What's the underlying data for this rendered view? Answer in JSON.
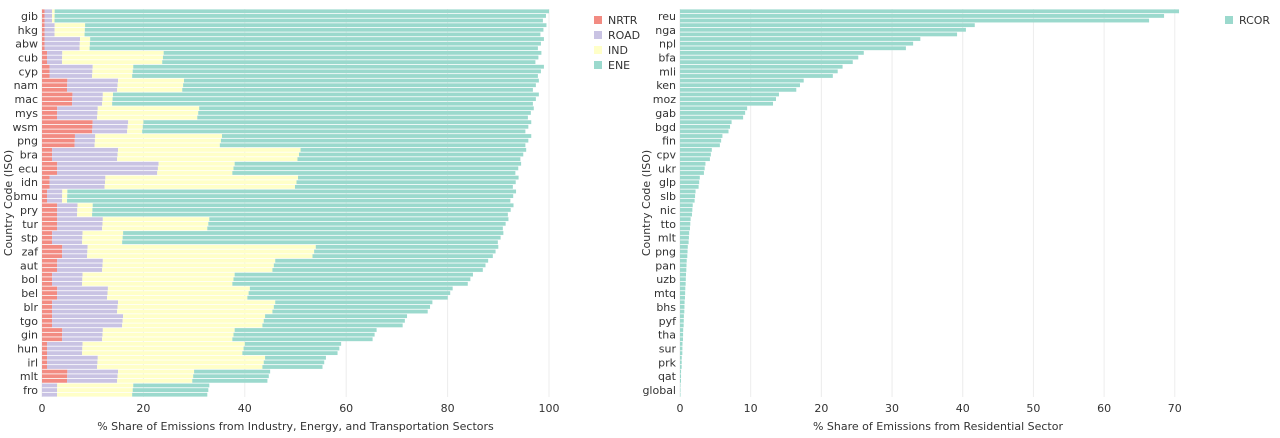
{
  "chart_data": [
    {
      "type": "bar",
      "orientation": "horizontal",
      "stacked": true,
      "xlabel": "% Share of Emissions from Industry, Energy, and Transportation Sectors",
      "ylabel": "Country Code (ISO)",
      "xlim": [
        0,
        100
      ],
      "xticks": [
        0,
        20,
        40,
        60,
        80,
        100
      ],
      "grid": true,
      "legend_position": "right",
      "tick_labels": [
        "gib",
        "hkg",
        "abw",
        "cub",
        "cyp",
        "nam",
        "mac",
        "mys",
        "wsm",
        "png",
        "bra",
        "ecu",
        "idn",
        "bmu",
        "pry",
        "tur",
        "stp",
        "zaf",
        "aut",
        "bol",
        "bel",
        "blr",
        "tgo",
        "gin",
        "hun",
        "irl",
        "mlt",
        "fro"
      ],
      "series": [
        {
          "name": "NRTR",
          "color": "#f28b82"
        },
        {
          "name": "ROAD",
          "color": "#c9c3e3"
        },
        {
          "name": "IND",
          "color": "#ffffc8"
        },
        {
          "name": "ENE",
          "color": "#9bd9cd"
        }
      ],
      "rows": [
        {
          "label": "gib",
          "values": [
            0.5,
            1.5,
            0.5,
            97.5
          ]
        },
        {
          "label": "hkg",
          "values": [
            0.5,
            2.0,
            6.0,
            91.0
          ]
        },
        {
          "label": "abw",
          "values": [
            0.5,
            7.0,
            2.0,
            89.5
          ]
        },
        {
          "label": "cub",
          "values": [
            1.0,
            3.0,
            20.0,
            74.5
          ]
        },
        {
          "label": "cyp",
          "values": [
            1.5,
            8.5,
            8.0,
            81.0
          ]
        },
        {
          "label": "nam",
          "values": [
            5.0,
            10.0,
            13.0,
            70.0
          ]
        },
        {
          "label": "mac",
          "values": [
            6.0,
            6.0,
            2.0,
            84.0
          ]
        },
        {
          "label": "mys",
          "values": [
            3.0,
            8.0,
            20.0,
            66.0
          ]
        },
        {
          "label": "wsm",
          "values": [
            10.0,
            7.0,
            3.0,
            76.5
          ]
        },
        {
          "label": "png",
          "values": [
            6.5,
            4.0,
            25.0,
            61.0
          ]
        },
        {
          "label": "bra",
          "values": [
            2.0,
            13.0,
            36.0,
            44.5
          ]
        },
        {
          "label": "ecu",
          "values": [
            3.0,
            20.0,
            15.0,
            56.5
          ]
        },
        {
          "label": "idn",
          "values": [
            1.5,
            11.0,
            38.0,
            43.5
          ]
        },
        {
          "label": "bmu",
          "values": [
            1.0,
            3.0,
            1.0,
            88.5
          ]
        },
        {
          "label": "pry",
          "values": [
            3.0,
            4.0,
            3.0,
            83.0
          ]
        },
        {
          "label": "tur",
          "values": [
            3.0,
            9.0,
            21.0,
            59.0
          ]
        },
        {
          "label": "stp",
          "values": [
            2.0,
            6.0,
            8.0,
            75.0
          ]
        },
        {
          "label": "zaf",
          "values": [
            4.0,
            5.0,
            45.0,
            36.0
          ]
        },
        {
          "label": "aut",
          "values": [
            3.0,
            9.0,
            34.0,
            42.0
          ]
        },
        {
          "label": "bol",
          "values": [
            2.0,
            6.0,
            30.0,
            47.0
          ]
        },
        {
          "label": "bel",
          "values": [
            3.0,
            10.0,
            28.0,
            40.0
          ]
        },
        {
          "label": "blr",
          "values": [
            2.0,
            13.0,
            31.0,
            31.0
          ]
        },
        {
          "label": "tgo",
          "values": [
            2.0,
            14.0,
            28.0,
            28.0
          ]
        },
        {
          "label": "gin",
          "values": [
            4.0,
            8.0,
            26.0,
            28.0
          ]
        },
        {
          "label": "hun",
          "values": [
            1.0,
            7.0,
            32.0,
            19.0
          ]
        },
        {
          "label": "irl",
          "values": [
            1.0,
            10.0,
            33.0,
            12.0
          ]
        },
        {
          "label": "mlt",
          "values": [
            5.0,
            10.0,
            15.0,
            15.0
          ]
        },
        {
          "label": "fro",
          "values": [
            0.0,
            3.0,
            15.0,
            15.0
          ]
        }
      ]
    },
    {
      "type": "bar",
      "orientation": "horizontal",
      "xlabel": "% Share of Emissions from Residential Sector",
      "ylabel": "Country Code (ISO)",
      "xlim": [
        0,
        73
      ],
      "xticks": [
        0,
        10,
        20,
        30,
        40,
        50,
        60,
        70
      ],
      "grid": true,
      "legend_position": "right",
      "tick_labels": [
        "reu",
        "nga",
        "npl",
        "bfa",
        "mli",
        "ken",
        "moz",
        "gab",
        "bgd",
        "fin",
        "cpv",
        "ukr",
        "glp",
        "slb",
        "nic",
        "tto",
        "mlt",
        "png",
        "pan",
        "uzb",
        "mtq",
        "bhs",
        "pyf",
        "tha",
        "sur",
        "prk",
        "qat",
        "global"
      ],
      "series": [
        {
          "name": "RCOR",
          "color": "#9bd9cd"
        }
      ],
      "rows": [
        {
          "label": "reu",
          "value": 70.6
        },
        {
          "label": "nga",
          "value": 41.7
        },
        {
          "label": "npl",
          "value": 34.0
        },
        {
          "label": "bfa",
          "value": 26.0
        },
        {
          "label": "mli",
          "value": 23.0
        },
        {
          "label": "ken",
          "value": 17.5
        },
        {
          "label": "moz",
          "value": 14.0
        },
        {
          "label": "gab",
          "value": 9.5
        },
        {
          "label": "bgd",
          "value": 7.3
        },
        {
          "label": "fin",
          "value": 6.0
        },
        {
          "label": "cpv",
          "value": 4.5
        },
        {
          "label": "ukr",
          "value": 3.6
        },
        {
          "label": "glp",
          "value": 2.8
        },
        {
          "label": "slb",
          "value": 2.2
        },
        {
          "label": "nic",
          "value": 1.8
        },
        {
          "label": "tto",
          "value": 1.5
        },
        {
          "label": "mlt",
          "value": 1.3
        },
        {
          "label": "png",
          "value": 1.1
        },
        {
          "label": "pan",
          "value": 0.95
        },
        {
          "label": "uzb",
          "value": 0.85
        },
        {
          "label": "mtq",
          "value": 0.75
        },
        {
          "label": "bhs",
          "value": 0.65
        },
        {
          "label": "pyf",
          "value": 0.55
        },
        {
          "label": "tha",
          "value": 0.45
        },
        {
          "label": "sur",
          "value": 0.35
        },
        {
          "label": "prk",
          "value": 0.25
        },
        {
          "label": "qat",
          "value": 0.15
        },
        {
          "label": "global",
          "value": 0.05
        }
      ]
    }
  ]
}
